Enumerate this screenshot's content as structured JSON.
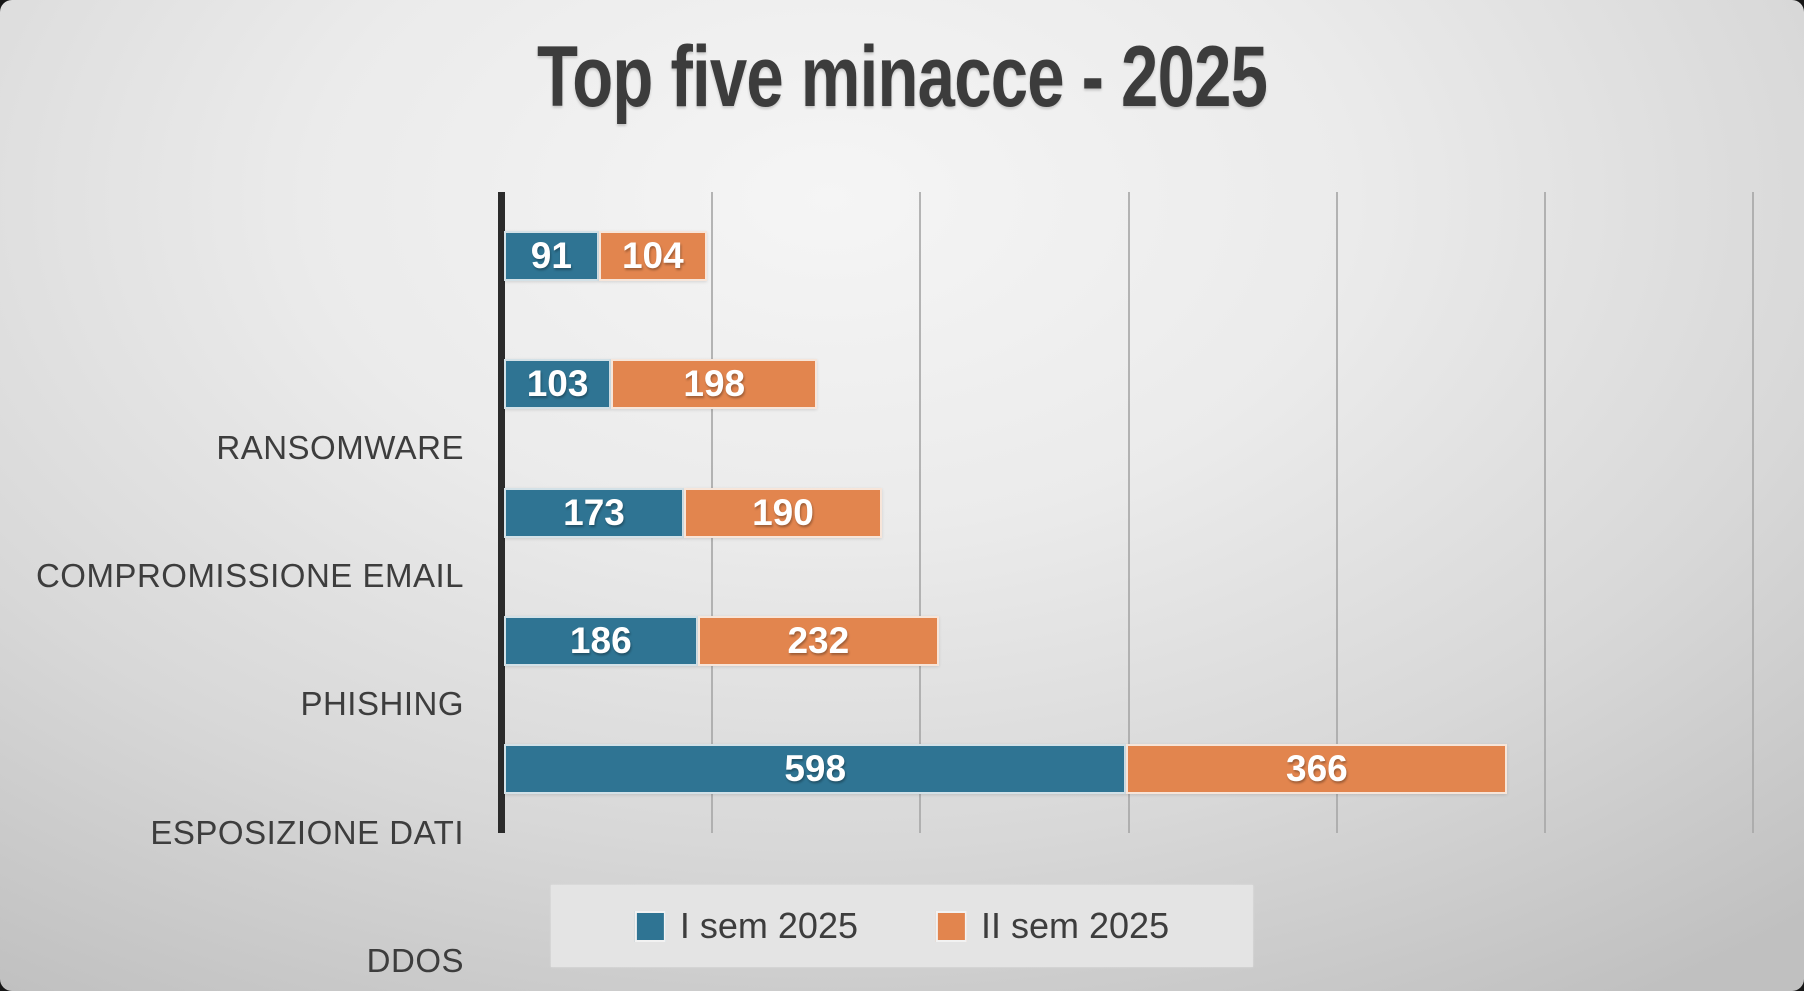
{
  "title": "Top five minacce - 2025",
  "colors": {
    "series1": "#2f7493",
    "series2": "#e2854e",
    "axis": "#2b2b2b",
    "gridline": "#a8a8a8",
    "category_label": "#3d3d3d",
    "value_label": "#ffffff",
    "title_color": "#3c3c3c",
    "legend_bg": "#e4e4e4"
  },
  "legend": {
    "position": "bottom",
    "items": [
      "I sem 2025",
      "II sem 2025"
    ]
  },
  "chart_data": {
    "type": "bar",
    "orientation": "horizontal-stacked",
    "title": "Top five minacce - 2025",
    "categories": [
      "RANSOMWARE",
      "COMPROMISSIONE EMAIL",
      "PHISHING",
      "ESPOSIZIONE DATI",
      "DDOS"
    ],
    "series": [
      {
        "name": "I sem 2025",
        "color": "#2f7493",
        "values": [
          91,
          103,
          173,
          186,
          598
        ]
      },
      {
        "name": "II sem 2025",
        "color": "#e2854e",
        "values": [
          104,
          198,
          190,
          232,
          366
        ]
      }
    ],
    "totals": [
      195,
      301,
      363,
      418,
      964
    ],
    "xlabel": "",
    "ylabel": "",
    "xlim": [
      0,
      1200
    ],
    "gridline_ticks": [
      200,
      400,
      600,
      800,
      1000,
      1200
    ],
    "grid": "vertical-only",
    "value_labels": true,
    "legend_position": "bottom"
  }
}
